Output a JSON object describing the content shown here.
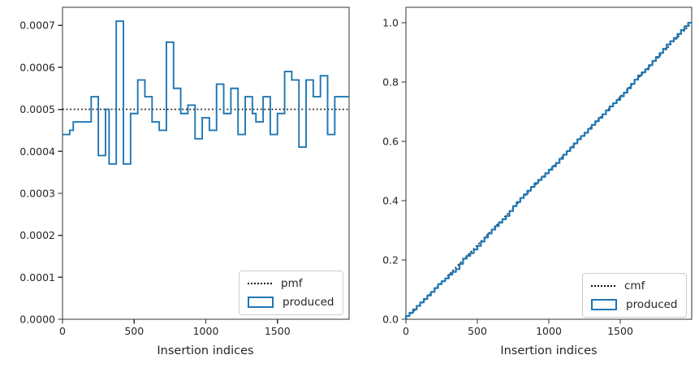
{
  "colors": {
    "blue": "#1f77b4",
    "text": "#262626",
    "spine": "#333333",
    "dotted": "#111111",
    "legend_border": "#cccccc",
    "background": "#ffffff"
  },
  "chart_data": [
    {
      "type": "bar",
      "subtype": "step-histogram-outline",
      "name": "pmf-vs-produced",
      "title": "",
      "xlabel": "Insertion indices",
      "ylabel": "",
      "xlim": [
        0,
        2000
      ],
      "ylim": [
        0,
        0.000743
      ],
      "x_ticks": [
        0,
        500,
        1000,
        1500
      ],
      "x_tick_labels": [
        "0",
        "500",
        "1000",
        "1500"
      ],
      "y_ticks": [
        0.0,
        0.0001,
        0.0002,
        0.0003,
        0.0004,
        0.0005,
        0.0006,
        0.0007
      ],
      "y_tick_labels": [
        "0.0000",
        "0.0001",
        "0.0002",
        "0.0003",
        "0.0004",
        "0.0005",
        "0.0006",
        "0.0007"
      ],
      "grid": false,
      "reference_pmf_value": 0.0005,
      "bin_start": 0,
      "bin_width": 25,
      "produced_values": [
        0.00044,
        0.00044,
        0.00045,
        0.00047,
        0.00047,
        0.00047,
        0.00047,
        0.00047,
        0.00053,
        0.00053,
        0.00039,
        0.00039,
        0.0005,
        0.00037,
        0.00037,
        0.00071,
        0.00071,
        0.00037,
        0.00037,
        0.00049,
        0.00049,
        0.00057,
        0.00057,
        0.00053,
        0.00053,
        0.00047,
        0.00047,
        0.00045,
        0.00045,
        0.00066,
        0.00066,
        0.00055,
        0.00055,
        0.00049,
        0.00049,
        0.00051,
        0.00051,
        0.00043,
        0.00043,
        0.00048,
        0.00048,
        0.00045,
        0.00045,
        0.00056,
        0.00056,
        0.00049,
        0.00049,
        0.00055,
        0.00055,
        0.00044,
        0.00044,
        0.00053,
        0.00053,
        0.00049,
        0.00047,
        0.00047,
        0.00053,
        0.00053,
        0.00044,
        0.00044,
        0.00049,
        0.00049,
        0.00059,
        0.00059,
        0.00057,
        0.00057,
        0.00041,
        0.00041,
        0.00057,
        0.00057,
        0.00053,
        0.00053,
        0.00058,
        0.00058,
        0.00044,
        0.00044,
        0.00053,
        0.00053,
        0.00053,
        0.00053
      ],
      "legend": {
        "position": "lower right",
        "entries": [
          {
            "label": "pmf",
            "marker": "dotted-line"
          },
          {
            "label": "produced",
            "marker": "open-rect"
          }
        ]
      }
    },
    {
      "type": "line",
      "subtype": "cumulative-step",
      "name": "cmf-vs-produced",
      "title": "",
      "xlabel": "Insertion indices",
      "ylabel": "",
      "xlim": [
        0,
        2000
      ],
      "ylim": [
        0,
        1.052
      ],
      "x_ticks": [
        0,
        500,
        1000,
        1500
      ],
      "x_tick_labels": [
        "0",
        "500",
        "1000",
        "1500"
      ],
      "y_ticks": [
        0.0,
        0.2,
        0.4,
        0.6,
        0.8,
        1.0
      ],
      "y_tick_labels": [
        "0.0",
        "0.2",
        "0.4",
        "0.6",
        "0.8",
        "1.0"
      ],
      "grid": false,
      "reference_cmf_endpoints": {
        "x": [
          0,
          2000
        ],
        "y": [
          0.0,
          1.0
        ]
      },
      "produced_cumulative_note": "running cumulative of chart 0 produced_values times bin_width, rising from 0.0 at index 0 to 1.0 at index 2000, slightly below the dotted ideal cmf through the middle",
      "legend": {
        "position": "lower right",
        "entries": [
          {
            "label": "cmf",
            "marker": "dotted-line"
          },
          {
            "label": "produced",
            "marker": "open-rect"
          }
        ]
      }
    }
  ]
}
